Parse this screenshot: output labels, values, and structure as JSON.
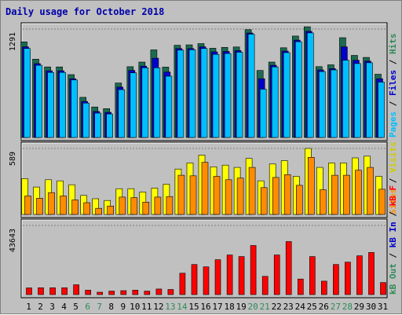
{
  "chart_data": {
    "type": "bar",
    "title": "Daily usage for October 2018",
    "categories": [
      "1",
      "2",
      "3",
      "4",
      "5",
      "6",
      "7",
      "8",
      "9",
      "10",
      "11",
      "12",
      "13",
      "14",
      "15",
      "16",
      "17",
      "18",
      "19",
      "20",
      "21",
      "22",
      "23",
      "24",
      "25",
      "26",
      "27",
      "28",
      "29",
      "30",
      "31"
    ],
    "weekend_days": [
      "6",
      "7",
      "13",
      "14",
      "20",
      "21",
      "27",
      "28"
    ],
    "panels": [
      {
        "id": "top",
        "ymax": 1291,
        "ymax_label": "1291",
        "side_labels": [
          {
            "text": "Hits",
            "color": "#2e8b57"
          },
          {
            "text": "Files",
            "color": "#0000cc"
          },
          {
            "text": "Pages",
            "color": "#00bfff"
          }
        ],
        "series": [
          {
            "name": "Hits",
            "color": "#1b6b52",
            "values": [
              1110,
              905,
              812,
              812,
              720,
              450,
              335,
              315,
              620,
              815,
              870,
              1015,
              810,
              1070,
              1075,
              1090,
              1035,
              1045,
              1050,
              1255,
              770,
              870,
              1040,
              1180,
              1290,
              816,
              837,
              1160,
              950,
              925,
              725
            ]
          },
          {
            "name": "Files",
            "color": "#0000cc",
            "values": [
              1070,
              870,
              785,
              785,
              690,
              420,
              300,
              290,
              590,
              790,
              840,
              935,
              770,
              1050,
              1050,
              1070,
              1010,
              1015,
              1025,
              1235,
              690,
              850,
              1020,
              1150,
              1255,
              795,
              810,
              1070,
              910,
              900,
              690
            ]
          },
          {
            "name": "Pages",
            "color": "#00bfff",
            "values": [
              1060,
              860,
              775,
              775,
              685,
              410,
              290,
              280,
              570,
              770,
              830,
              830,
              730,
              1040,
              1045,
              1060,
              990,
              1000,
              1015,
              1230,
              575,
              840,
              1010,
              1140,
              1245,
              785,
              805,
              920,
              880,
              890,
              660
            ]
          }
        ]
      },
      {
        "id": "mid",
        "ymax": 589,
        "ymax_label": "589",
        "side_labels": [
          {
            "text": "Visits",
            "color": "#cccc00"
          },
          {
            "text": "Sites",
            "color": "#ff8c00"
          }
        ],
        "series": [
          {
            "name": "Visits",
            "color": "#ffff00",
            "values": [
              320,
              245,
              310,
              300,
              265,
              170,
              140,
              125,
              230,
              230,
              200,
              235,
              270,
              405,
              460,
              530,
              425,
              440,
              420,
              500,
              300,
              450,
              480,
              340,
              589,
              420,
              460,
              460,
              505,
              520,
              340
            ]
          },
          {
            "name": "Sites",
            "color": "#ff8c00",
            "values": [
              165,
              145,
              195,
              165,
              130,
              105,
              55,
              75,
              155,
              150,
              110,
              155,
              160,
              350,
              345,
              465,
              340,
              310,
              325,
              420,
              240,
              330,
              355,
              260,
              510,
              220,
              350,
              350,
              395,
              420,
              225
            ]
          }
        ]
      },
      {
        "id": "bot",
        "ymax": 43643,
        "ymax_label": "43643",
        "side_labels": [
          {
            "text": "kB F",
            "color": "#ff0000"
          },
          {
            "text": "kB In",
            "color": "#0000cc"
          },
          {
            "text": "kB Out",
            "color": "#2e8b57"
          }
        ],
        "series": [
          {
            "name": "kB F",
            "color": "#ff0000",
            "values": [
              4200,
              4300,
              4300,
              4300,
              6200,
              2800,
              1500,
              2200,
              2500,
              2800,
              2200,
              3500,
              3200,
              13500,
              19000,
              17500,
              22000,
              25000,
              24000,
              31000,
              11500,
              25000,
              33500,
              9800,
              24000,
              8500,
              19000,
              20500,
              24500,
              26600,
              7600
            ]
          }
        ]
      }
    ]
  }
}
